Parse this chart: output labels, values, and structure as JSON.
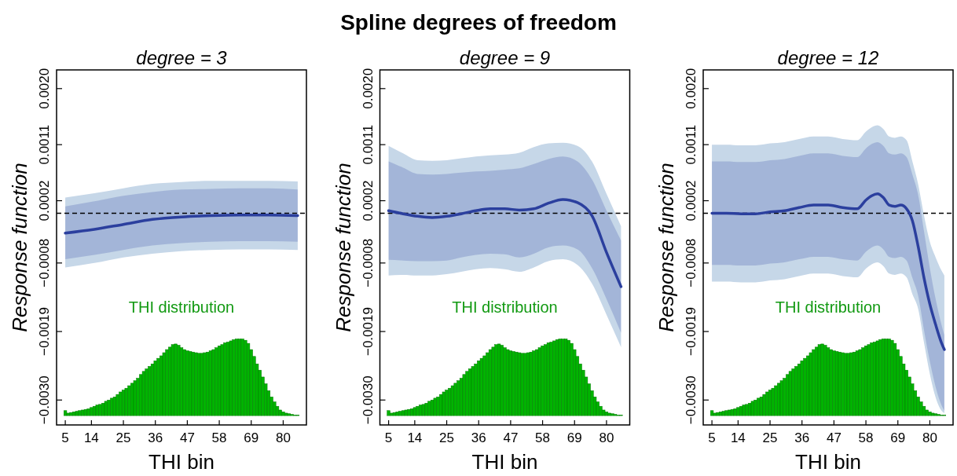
{
  "chart_data": [
    {
      "type": "line",
      "annotations": [
        "Spline degrees of freedom"
      ],
      "subtitle": "degree = 3",
      "xlabel": "THI bin",
      "ylabel": "Response function",
      "xlim": [
        2,
        88
      ],
      "ylim": [
        -0.0034,
        0.0023
      ],
      "xticks": [
        5,
        14,
        25,
        36,
        47,
        58,
        69,
        80
      ],
      "yticks": [
        {
          "value": -0.003,
          "label": "−0.0030"
        },
        {
          "value": -0.0019,
          "label": "−0.0019"
        },
        {
          "value": -0.0008,
          "label": "−0.0008"
        },
        {
          "value": 0.0002,
          "label": "0.0002"
        },
        {
          "value": 0.0011,
          "label": "0.0011"
        },
        {
          "value": 0.002,
          "label": "0.0020"
        }
      ],
      "ref_lines": [
        {
          "axis": "y",
          "value": 0,
          "line_style": "dashed",
          "color": "#000000"
        }
      ],
      "series": [
        {
          "type": "line",
          "color": "#c6d7e8",
          "x": [
            5,
            15,
            25,
            35,
            45,
            55,
            65,
            75,
            85
          ],
          "values": [
            null,
            null,
            null,
            null,
            null,
            null,
            null,
            null,
            null
          ],
          "lower": [
            -0.00087,
            -0.0008,
            -0.00071,
            -0.00065,
            -0.00061,
            -0.00059,
            -0.00058,
            -0.00058,
            -0.00059
          ],
          "upper": [
            0.00025,
            0.00032,
            0.0004,
            0.00047,
            0.0005,
            0.00052,
            0.00052,
            0.00052,
            0.00051
          ]
        },
        {
          "type": "line",
          "color": "#2b3f9e",
          "x": [
            5,
            15,
            25,
            35,
            45,
            55,
            65,
            75,
            85
          ],
          "values": [
            -0.00032,
            -0.00026,
            -0.00018,
            -0.0001,
            -6e-05,
            -4e-05,
            -3e-05,
            -3e-05,
            -4e-05
          ],
          "lower": [
            -0.00074,
            -0.00067,
            -0.00059,
            -0.00052,
            -0.00048,
            -0.00046,
            -0.00045,
            -0.00045,
            -0.00046
          ],
          "upper": [
            0.00011,
            0.00019,
            0.00028,
            0.00034,
            0.00038,
            0.00039,
            0.0004,
            0.0004,
            0.00038
          ]
        },
        {
          "type": "bar",
          "name": "THI distribution",
          "color": "#00b400",
          "x": [
            5,
            6,
            7,
            8,
            9,
            10,
            11,
            12,
            13,
            14,
            15,
            16,
            17,
            18,
            19,
            20,
            21,
            22,
            23,
            24,
            25,
            26,
            27,
            28,
            29,
            30,
            31,
            32,
            33,
            34,
            35,
            36,
            37,
            38,
            39,
            40,
            41,
            42,
            43,
            44,
            45,
            46,
            47,
            48,
            49,
            50,
            51,
            52,
            53,
            54,
            55,
            56,
            57,
            58,
            59,
            60,
            61,
            62,
            63,
            64,
            65,
            66,
            67,
            68,
            69,
            70,
            71,
            72,
            73,
            74,
            75,
            76,
            77,
            78,
            79,
            80,
            81,
            82,
            83,
            84,
            85
          ],
          "values": [
            8e-05,
            4e-05,
            5e-05,
            6e-05,
            7e-05,
            8e-05,
            9e-05,
            0.0001,
            0.00011,
            0.00013,
            0.00015,
            0.00017,
            0.00018,
            0.0002,
            0.00023,
            0.00025,
            0.00028,
            0.0003,
            0.00034,
            0.00038,
            0.00041,
            0.00044,
            0.00048,
            0.00052,
            0.00056,
            0.0006,
            0.00066,
            0.00071,
            0.00075,
            0.00079,
            0.00083,
            0.00088,
            0.00092,
            0.00096,
            0.00101,
            0.00106,
            0.0011,
            0.00114,
            0.00115,
            0.00113,
            0.00109,
            0.00106,
            0.00104,
            0.00103,
            0.00102,
            0.00101,
            0.001,
            0.001,
            0.00101,
            0.00102,
            0.00104,
            0.00106,
            0.00109,
            0.00112,
            0.00114,
            0.00117,
            0.00118,
            0.0012,
            0.00122,
            0.00123,
            0.00123,
            0.00123,
            0.00121,
            0.00116,
            0.00106,
            0.00095,
            0.00083,
            0.00073,
            0.00062,
            0.00051,
            0.0004,
            0.0003,
            0.00022,
            0.00015,
            9e-05,
            6e-05,
            4e-05,
            3e-05,
            2e-05,
            1e-05,
            1e-05
          ],
          "base": [
            -0.00325,
            -0.00325,
            -0.00325,
            -0.00325,
            -0.00325,
            -0.00325,
            -0.00325,
            -0.00325,
            -0.00325,
            -0.00325,
            -0.00325,
            -0.00325,
            -0.00325,
            -0.00325,
            -0.00325,
            -0.00325,
            -0.00325,
            -0.00325,
            -0.00325,
            -0.00325,
            -0.00325,
            -0.00325,
            -0.00325,
            -0.00325,
            -0.00325,
            -0.00325,
            -0.00325,
            -0.00325,
            -0.00325,
            -0.00325,
            -0.00325,
            -0.00325,
            -0.00325,
            -0.00325,
            -0.00325,
            -0.00325,
            -0.00325,
            -0.00325,
            -0.00325,
            -0.00325,
            -0.00325,
            -0.00325,
            -0.00325,
            -0.00325,
            -0.00325,
            -0.00325,
            -0.00325,
            -0.00325,
            -0.00325,
            -0.00325,
            -0.00325,
            -0.00325,
            -0.00325,
            -0.00325,
            -0.00325,
            -0.00325,
            -0.00325,
            -0.00325,
            -0.00325,
            -0.00325,
            -0.00325,
            -0.00325,
            -0.00325,
            -0.00325,
            -0.00325,
            -0.00325,
            -0.00325,
            -0.00325,
            -0.00325,
            -0.00325,
            -0.00325,
            -0.00325,
            -0.00325,
            -0.00325,
            -0.00325,
            -0.00325,
            -0.00325,
            -0.00325,
            -0.00325,
            -0.00325,
            -0.00325
          ]
        }
      ]
    },
    {
      "type": "line",
      "subtitle": "degree = 9",
      "xlabel": "THI bin",
      "ylabel": "Response function",
      "xlim": [
        2,
        88
      ],
      "ylim": [
        -0.0034,
        0.0023
      ],
      "xticks": [
        5,
        14,
        25,
        36,
        47,
        58,
        69,
        80
      ],
      "yticks": [
        {
          "value": -0.003,
          "label": "−0.0030"
        },
        {
          "value": -0.0019,
          "label": "−0.0019"
        },
        {
          "value": -0.0008,
          "label": "−0.0008"
        },
        {
          "value": 0.0002,
          "label": "0.0002"
        },
        {
          "value": 0.0011,
          "label": "0.0011"
        },
        {
          "value": 0.002,
          "label": "0.0020"
        }
      ],
      "ref_lines": [
        {
          "axis": "y",
          "value": 0,
          "line_style": "dashed",
          "color": "#000000"
        }
      ],
      "series": [
        {
          "type": "line",
          "color": "#c6d7e8",
          "x": [
            5,
            10,
            15,
            20,
            25,
            30,
            35,
            40,
            45,
            50,
            55,
            60,
            65,
            70,
            75,
            80,
            85
          ],
          "values": [
            null,
            null,
            null,
            null,
            null,
            null,
            null,
            null,
            null,
            null,
            null,
            null,
            null,
            null,
            null,
            null,
            null
          ],
          "lower": [
            -0.001,
            -0.00099,
            -0.001,
            -0.001,
            -0.00098,
            -0.00094,
            -0.0009,
            -0.00088,
            -0.0009,
            -0.00094,
            -0.00087,
            -0.00077,
            -0.00074,
            -0.00083,
            -0.00113,
            -0.00163,
            -0.00215
          ],
          "upper": [
            0.00108,
            0.00096,
            0.00085,
            0.00084,
            0.00085,
            0.00088,
            0.00091,
            0.00093,
            0.00094,
            0.00097,
            0.00106,
            0.00112,
            0.00113,
            0.00108,
            0.00083,
            0.00031,
            -0.00021
          ]
        },
        {
          "type": "line",
          "color": "#2b3f9e",
          "x": [
            5,
            10,
            15,
            20,
            25,
            30,
            35,
            40,
            45,
            50,
            55,
            60,
            65,
            70,
            75,
            80,
            85
          ],
          "values": [
            4e-05,
            -1e-05,
            -5e-05,
            -7e-05,
            -5e-05,
            -1e-05,
            4e-05,
            7e-05,
            7e-05,
            5e-05,
            7e-05,
            0.00016,
            0.00022,
            0.00017,
            -4e-05,
            -0.00063,
            -0.00118
          ],
          "lower": [
            -0.00075,
            -0.00076,
            -0.00077,
            -0.00077,
            -0.00076,
            -0.00071,
            -0.00067,
            -0.00065,
            -0.00066,
            -0.00071,
            -0.00065,
            -0.00055,
            -0.00052,
            -0.00058,
            -0.00088,
            -0.00138,
            -0.00192
          ],
          "upper": [
            0.00083,
            0.00073,
            0.00063,
            0.00062,
            0.00063,
            0.00065,
            0.00067,
            0.00068,
            0.0007,
            0.00072,
            0.00079,
            0.00087,
            0.00091,
            0.00083,
            0.00054,
            4e-05,
            -0.00044
          ]
        },
        {
          "type": "bar",
          "name": "THI distribution",
          "color": "#00b400",
          "x": [
            5,
            6,
            7,
            8,
            9,
            10,
            11,
            12,
            13,
            14,
            15,
            16,
            17,
            18,
            19,
            20,
            21,
            22,
            23,
            24,
            25,
            26,
            27,
            28,
            29,
            30,
            31,
            32,
            33,
            34,
            35,
            36,
            37,
            38,
            39,
            40,
            41,
            42,
            43,
            44,
            45,
            46,
            47,
            48,
            49,
            50,
            51,
            52,
            53,
            54,
            55,
            56,
            57,
            58,
            59,
            60,
            61,
            62,
            63,
            64,
            65,
            66,
            67,
            68,
            69,
            70,
            71,
            72,
            73,
            74,
            75,
            76,
            77,
            78,
            79,
            80,
            81,
            82,
            83,
            84,
            85
          ],
          "values": [
            8e-05,
            4e-05,
            5e-05,
            6e-05,
            7e-05,
            8e-05,
            9e-05,
            0.0001,
            0.00011,
            0.00013,
            0.00015,
            0.00017,
            0.00018,
            0.0002,
            0.00023,
            0.00025,
            0.00028,
            0.0003,
            0.00034,
            0.00038,
            0.00041,
            0.00044,
            0.00048,
            0.00052,
            0.00056,
            0.0006,
            0.00066,
            0.00071,
            0.00075,
            0.00079,
            0.00083,
            0.00088,
            0.00092,
            0.00096,
            0.00101,
            0.00106,
            0.0011,
            0.00114,
            0.00115,
            0.00113,
            0.00109,
            0.00106,
            0.00104,
            0.00103,
            0.00102,
            0.00101,
            0.001,
            0.001,
            0.00101,
            0.00102,
            0.00104,
            0.00106,
            0.00109,
            0.00112,
            0.00114,
            0.00117,
            0.00118,
            0.0012,
            0.00122,
            0.00123,
            0.00123,
            0.00123,
            0.00121,
            0.00116,
            0.00106,
            0.00095,
            0.00083,
            0.00073,
            0.00062,
            0.00051,
            0.0004,
            0.0003,
            0.00022,
            0.00015,
            9e-05,
            6e-05,
            4e-05,
            3e-05,
            2e-05,
            1e-05,
            1e-05
          ],
          "base": [
            -0.00325,
            -0.00325,
            -0.00325,
            -0.00325,
            -0.00325,
            -0.00325,
            -0.00325,
            -0.00325,
            -0.00325,
            -0.00325,
            -0.00325,
            -0.00325,
            -0.00325,
            -0.00325,
            -0.00325,
            -0.00325,
            -0.00325,
            -0.00325,
            -0.00325,
            -0.00325,
            -0.00325,
            -0.00325,
            -0.00325,
            -0.00325,
            -0.00325,
            -0.00325,
            -0.00325,
            -0.00325,
            -0.00325,
            -0.00325,
            -0.00325,
            -0.00325,
            -0.00325,
            -0.00325,
            -0.00325,
            -0.00325,
            -0.00325,
            -0.00325,
            -0.00325,
            -0.00325,
            -0.00325,
            -0.00325,
            -0.00325,
            -0.00325,
            -0.00325,
            -0.00325,
            -0.00325,
            -0.00325,
            -0.00325,
            -0.00325,
            -0.00325,
            -0.00325,
            -0.00325,
            -0.00325,
            -0.00325,
            -0.00325,
            -0.00325,
            -0.00325,
            -0.00325,
            -0.00325,
            -0.00325,
            -0.00325,
            -0.00325,
            -0.00325,
            -0.00325,
            -0.00325,
            -0.00325,
            -0.00325,
            -0.00325,
            -0.00325,
            -0.00325,
            -0.00325,
            -0.00325,
            -0.00325,
            -0.00325,
            -0.00325,
            -0.00325,
            -0.00325,
            -0.00325,
            -0.00325,
            -0.00325
          ]
        }
      ]
    },
    {
      "type": "line",
      "subtitle": "degree = 12",
      "xlabel": "THI bin",
      "ylabel": "Response function",
      "xlim": [
        2,
        88
      ],
      "ylim": [
        -0.0034,
        0.0023
      ],
      "xticks": [
        5,
        14,
        25,
        36,
        47,
        58,
        69,
        80
      ],
      "yticks": [
        {
          "value": -0.003,
          "label": "−0.0030"
        },
        {
          "value": -0.0019,
          "label": "−0.0019"
        },
        {
          "value": -0.0008,
          "label": "−0.0008"
        },
        {
          "value": 0.0002,
          "label": "0.0002"
        },
        {
          "value": 0.0011,
          "label": "0.0011"
        },
        {
          "value": 0.002,
          "label": "0.0020"
        }
      ],
      "ref_lines": [
        {
          "axis": "y",
          "value": 0,
          "line_style": "dashed",
          "color": "#000000"
        }
      ],
      "series": [
        {
          "type": "line",
          "color": "#c6d7e8",
          "x": [
            5,
            10,
            15,
            20,
            25,
            30,
            35,
            40,
            45,
            50,
            55,
            58,
            60,
            62,
            64,
            66,
            68,
            70,
            72,
            74,
            76,
            78,
            80,
            82,
            84,
            85
          ],
          "values": [
            null,
            null,
            null,
            null,
            null,
            null,
            null,
            null,
            null,
            null,
            null,
            null,
            null,
            null,
            null,
            null,
            null,
            null,
            null,
            null,
            null,
            null,
            null,
            null,
            null,
            null
          ],
          "lower": [
            -0.0011,
            -0.0011,
            -0.00111,
            -0.00111,
            -0.00108,
            -0.00106,
            -0.00101,
            -0.00097,
            -0.00097,
            -0.00101,
            -0.00103,
            -0.00089,
            -0.00082,
            -0.00079,
            -0.00085,
            -0.00097,
            -0.00099,
            -0.00097,
            -0.00103,
            -0.0013,
            -0.00154,
            -0.00208,
            -0.00258,
            -0.00296,
            -0.00317,
            -0.00321
          ],
          "upper": [
            0.0011,
            0.0011,
            0.00109,
            0.00109,
            0.00112,
            0.00114,
            0.00119,
            0.00123,
            0.00123,
            0.00119,
            0.00117,
            0.00131,
            0.00138,
            0.00141,
            0.00135,
            0.00123,
            0.00121,
            0.00123,
            0.00117,
            0.00083,
            0.00046,
            -4e-05,
            -0.00046,
            -0.00071,
            -0.00092,
            -0.001
          ]
        },
        {
          "type": "line",
          "color": "#2b3f9e",
          "x": [
            5,
            10,
            15,
            20,
            25,
            30,
            35,
            40,
            45,
            50,
            55,
            58,
            60,
            62,
            64,
            66,
            68,
            70,
            72,
            74,
            76,
            78,
            80,
            82,
            84,
            85
          ],
          "values": [
            0,
            0,
            -1e-05,
            -1e-05,
            2e-05,
            4e-05,
            9e-05,
            0.00013,
            0.00013,
            9e-05,
            7e-05,
            0.00021,
            0.00028,
            0.00031,
            0.00025,
            0.00013,
            0.00011,
            0.00013,
            7e-05,
            -0.00012,
            -0.00054,
            -0.00104,
            -0.00146,
            -0.00179,
            -0.00208,
            -0.00219
          ],
          "lower": [
            -0.00083,
            -0.00083,
            -0.00084,
            -0.00084,
            -0.00081,
            -0.00079,
            -0.00074,
            -0.0007,
            -0.0007,
            -0.00074,
            -0.00076,
            -0.00062,
            -0.00055,
            -0.00052,
            -0.00058,
            -0.0007,
            -0.00072,
            -0.0007,
            -0.00076,
            -0.00104,
            -0.00133,
            -0.00188,
            -0.00238,
            -0.00279,
            -0.00308,
            -0.00317
          ],
          "upper": [
            0.00083,
            0.00083,
            0.00082,
            0.00082,
            0.00085,
            0.00087,
            0.00092,
            0.00096,
            0.00096,
            0.00092,
            0.0009,
            0.00104,
            0.00111,
            0.00114,
            0.00108,
            0.00096,
            0.00094,
            0.00096,
            0.0009,
            0.00062,
            0.00029,
            -0.00029,
            -0.00088,
            -0.00138,
            -0.00179,
            -0.00196
          ]
        },
        {
          "type": "bar",
          "name": "THI distribution",
          "color": "#00b400",
          "x": [
            5,
            6,
            7,
            8,
            9,
            10,
            11,
            12,
            13,
            14,
            15,
            16,
            17,
            18,
            19,
            20,
            21,
            22,
            23,
            24,
            25,
            26,
            27,
            28,
            29,
            30,
            31,
            32,
            33,
            34,
            35,
            36,
            37,
            38,
            39,
            40,
            41,
            42,
            43,
            44,
            45,
            46,
            47,
            48,
            49,
            50,
            51,
            52,
            53,
            54,
            55,
            56,
            57,
            58,
            59,
            60,
            61,
            62,
            63,
            64,
            65,
            66,
            67,
            68,
            69,
            70,
            71,
            72,
            73,
            74,
            75,
            76,
            77,
            78,
            79,
            80,
            81,
            82,
            83,
            84,
            85
          ],
          "values": [
            8e-05,
            4e-05,
            5e-05,
            6e-05,
            7e-05,
            8e-05,
            9e-05,
            0.0001,
            0.00011,
            0.00013,
            0.00015,
            0.00017,
            0.00018,
            0.0002,
            0.00023,
            0.00025,
            0.00028,
            0.0003,
            0.00034,
            0.00038,
            0.00041,
            0.00044,
            0.00048,
            0.00052,
            0.00056,
            0.0006,
            0.00066,
            0.00071,
            0.00075,
            0.00079,
            0.00083,
            0.00088,
            0.00092,
            0.00096,
            0.00101,
            0.00106,
            0.0011,
            0.00114,
            0.00115,
            0.00113,
            0.00109,
            0.00106,
            0.00104,
            0.00103,
            0.00102,
            0.00101,
            0.001,
            0.001,
            0.00101,
            0.00102,
            0.00104,
            0.00106,
            0.00109,
            0.00112,
            0.00114,
            0.00117,
            0.00118,
            0.0012,
            0.00122,
            0.00123,
            0.00123,
            0.00123,
            0.00121,
            0.00116,
            0.00106,
            0.00095,
            0.00083,
            0.00073,
            0.00062,
            0.00051,
            0.0004,
            0.0003,
            0.00022,
            0.00015,
            9e-05,
            6e-05,
            4e-05,
            3e-05,
            2e-05,
            1e-05,
            1e-05
          ],
          "base": [
            -0.00325,
            -0.00325,
            -0.00325,
            -0.00325,
            -0.00325,
            -0.00325,
            -0.00325,
            -0.00325,
            -0.00325,
            -0.00325,
            -0.00325,
            -0.00325,
            -0.00325,
            -0.00325,
            -0.00325,
            -0.00325,
            -0.00325,
            -0.00325,
            -0.00325,
            -0.00325,
            -0.00325,
            -0.00325,
            -0.00325,
            -0.00325,
            -0.00325,
            -0.00325,
            -0.00325,
            -0.00325,
            -0.00325,
            -0.00325,
            -0.00325,
            -0.00325,
            -0.00325,
            -0.00325,
            -0.00325,
            -0.00325,
            -0.00325,
            -0.00325,
            -0.00325,
            -0.00325,
            -0.00325,
            -0.00325,
            -0.00325,
            -0.00325,
            -0.00325,
            -0.00325,
            -0.00325,
            -0.00325,
            -0.00325,
            -0.00325,
            -0.00325,
            -0.00325,
            -0.00325,
            -0.00325,
            -0.00325,
            -0.00325,
            -0.00325,
            -0.00325,
            -0.00325,
            -0.00325,
            -0.00325,
            -0.00325,
            -0.00325,
            -0.00325,
            -0.00325,
            -0.00325,
            -0.00325,
            -0.00325,
            -0.00325,
            -0.00325,
            -0.00325,
            -0.00325,
            -0.00325,
            -0.00325,
            -0.00325,
            -0.00325,
            -0.00325,
            -0.00325,
            -0.00325,
            -0.00325,
            -0.00325
          ]
        }
      ]
    }
  ]
}
